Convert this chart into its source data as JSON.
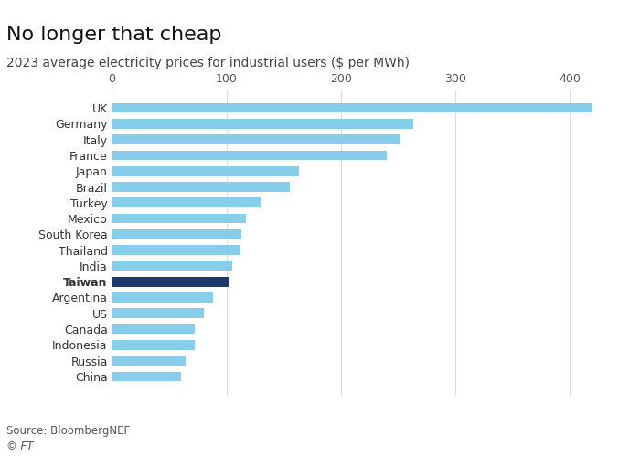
{
  "title": "No longer that cheap",
  "subtitle": "2023 average electricity prices for industrial users ($ per MWh)",
  "source": "Source: BloombergNEF",
  "copyright": "© FT",
  "categories": [
    "UK",
    "Germany",
    "Italy",
    "France",
    "Japan",
    "Brazil",
    "Turkey",
    "Mexico",
    "South Korea",
    "Thailand",
    "India",
    "Taiwan",
    "Argentina",
    "US",
    "Canada",
    "Indonesia",
    "Russia",
    "China"
  ],
  "values": [
    420,
    263,
    252,
    240,
    163,
    155,
    130,
    117,
    113,
    112,
    105,
    102,
    88,
    80,
    72,
    72,
    64,
    60
  ],
  "bar_colors": [
    "#87CEEB",
    "#87CEEB",
    "#87CEEB",
    "#87CEEB",
    "#87CEEB",
    "#87CEEB",
    "#87CEEB",
    "#87CEEB",
    "#87CEEB",
    "#87CEEB",
    "#87CEEB",
    "#1B3A6B",
    "#87CEEB",
    "#87CEEB",
    "#87CEEB",
    "#87CEEB",
    "#87CEEB",
    "#87CEEB"
  ],
  "highlight_index": 11,
  "highlight_name": "Taiwan",
  "xlim": [
    0,
    450
  ],
  "xticks": [
    0,
    100,
    200,
    300,
    400
  ],
  "background_color": "#FFFFFF",
  "bar_height": 0.62,
  "title_fontsize": 16,
  "subtitle_fontsize": 10,
  "tick_fontsize": 9,
  "label_fontsize": 9,
  "source_fontsize": 8.5,
  "light_blue": "#87CEEB",
  "dark_blue": "#1B3A6B",
  "grid_color": "#DDDDDD",
  "salmon_bar_color": "#E07B54"
}
